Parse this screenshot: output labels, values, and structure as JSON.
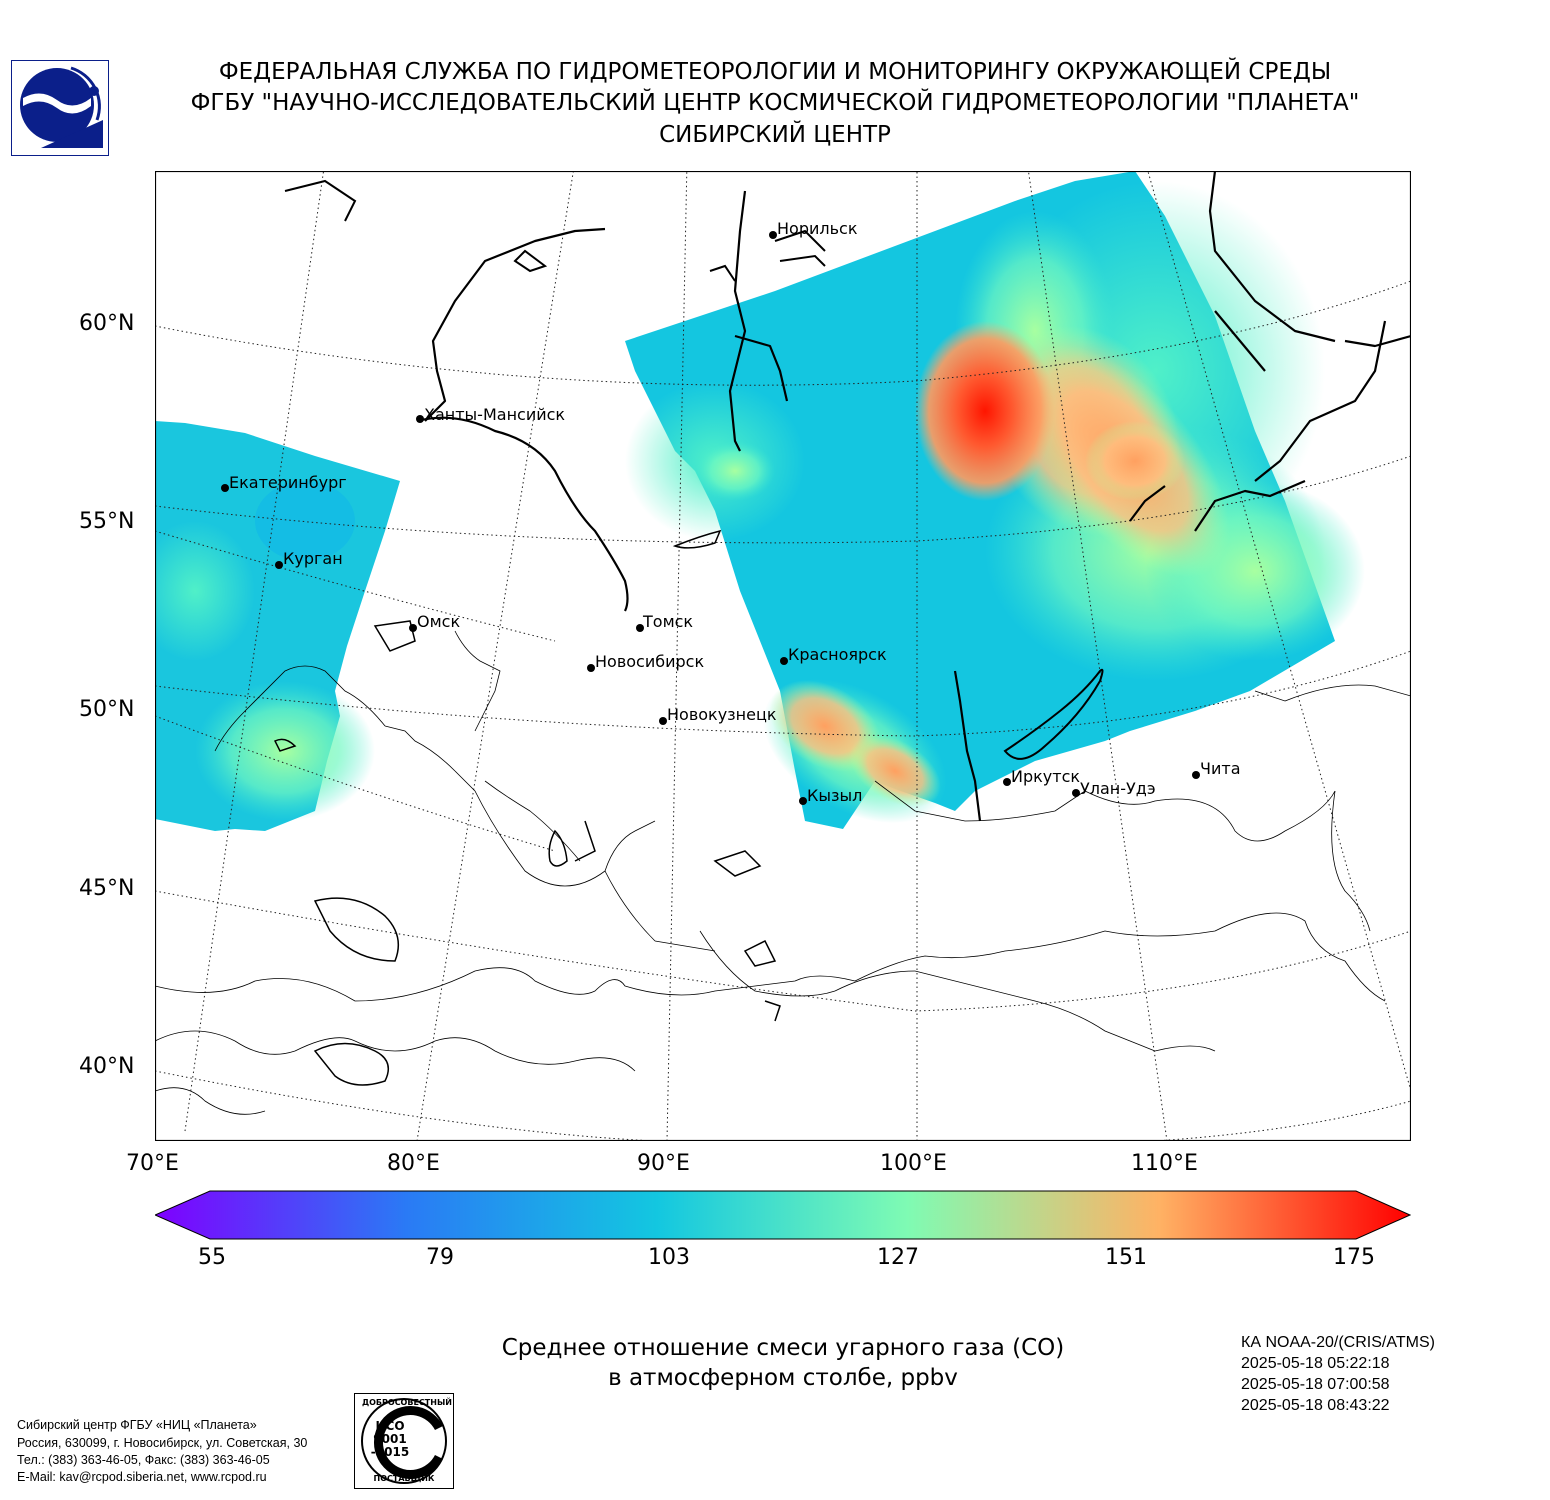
{
  "header": {
    "line1": "ФЕДЕРАЛЬНАЯ СЛУЖБА ПО ГИДРОМЕТЕОРОЛОГИИ И МОНИТОРИНГУ ОКРУЖАЮЩЕЙ СРЕДЫ",
    "line2": "ФГБУ \"НАУЧНО-ИССЛЕДОВАТЕЛЬСКИЙ ЦЕНТР КОСМИЧЕСКОЙ ГИДРОМЕТЕОРОЛОГИИ \"ПЛАНЕТА\"",
    "line3": "СИБИРСКИЙ ЦЕНТР"
  },
  "map": {
    "lat_labels": [
      "60°N",
      "55°N",
      "50°N",
      "45°N",
      "40°N"
    ],
    "lon_labels": [
      "70°E",
      "80°E",
      "90°E",
      "100°E",
      "110°E"
    ],
    "cities": [
      {
        "name": "Норильск"
      },
      {
        "name": "Ханты-Мансийск"
      },
      {
        "name": "Екатеринбург"
      },
      {
        "name": "Курган"
      },
      {
        "name": "Омск"
      },
      {
        "name": "Томск"
      },
      {
        "name": "Новосибирск"
      },
      {
        "name": "Красноярск"
      },
      {
        "name": "Новокузнецк"
      },
      {
        "name": "Кызыл"
      },
      {
        "name": "Иркутск"
      },
      {
        "name": "Улан-Удэ"
      },
      {
        "name": "Чита"
      }
    ]
  },
  "colorbar": {
    "ticks": [
      "55",
      "79",
      "103",
      "127",
      "151",
      "175"
    ],
    "colors": [
      "#7f00ff",
      "#2a7af5",
      "#13c7e0",
      "#7ffbb3",
      "#ffb264",
      "#ff0000"
    ]
  },
  "caption": {
    "line1": "Среднее отношение смеси угарного газа (CO)",
    "line2": "в атмосферном столбе, ppbv"
  },
  "satellite": {
    "name": "КА NOAA-20/(CRIS/ATMS)",
    "times": [
      "2025-05-18 05:22:18",
      "2025-05-18 07:00:58",
      "2025-05-18 08:43:22"
    ]
  },
  "footer": {
    "org": "Сибирский центр ФГБУ «НИЦ «Планета»",
    "address": "Россия, 630099, г. Новосибирск, ул. Советская, 30",
    "phone": "Тел.: (383) 363-46-05, Факс: (383) 363-46-05",
    "email": "E-Mail: kav@rcpod.siberia.net, www.rcpod.ru"
  },
  "iso_badge": {
    "top": "ДОБРОСОВЕСТНЫЙ",
    "middle1": "ИСО",
    "middle2": "9001",
    "middle3": "-2015",
    "bottom": "ПОСТАВЩИК"
  }
}
